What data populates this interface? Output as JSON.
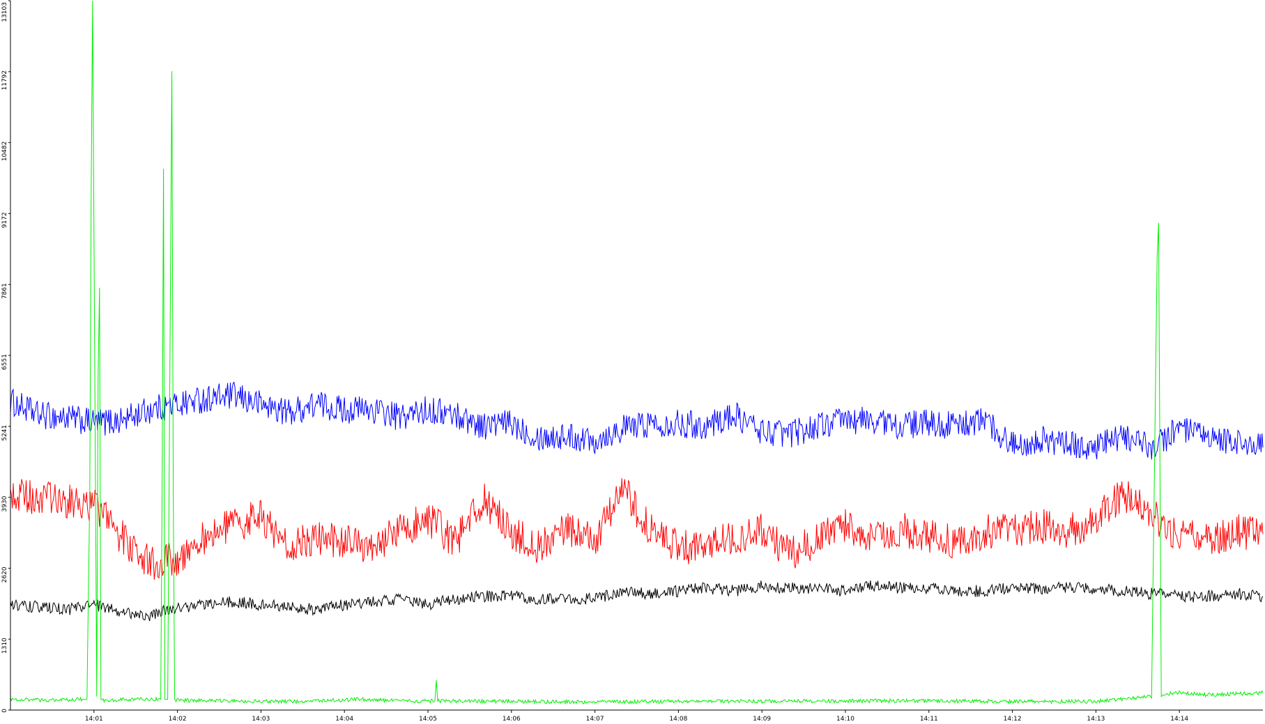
{
  "chart_data": {
    "type": "line",
    "title": "",
    "xlabel": "",
    "ylabel": "",
    "ylim": [
      0,
      13103
    ],
    "xlim": [
      "14:00:00",
      "14:15:00"
    ],
    "grid": false,
    "legend": "none",
    "y_ticks": [
      0,
      1310,
      2620,
      3930,
      5241,
      6551,
      7861,
      9172,
      10482,
      11792,
      13103
    ],
    "x_ticks": [
      "14:01",
      "14:02",
      "14:03",
      "14:04",
      "14:05",
      "14:06",
      "14:07",
      "14:08",
      "14:09",
      "14:10",
      "14:11",
      "14:12",
      "14:13",
      "14:14"
    ],
    "series": [
      {
        "color": "#0000ff",
        "x": [
          "14:00:00",
          "14:00:20",
          "14:00:40",
          "14:01:00",
          "14:01:20",
          "14:01:40",
          "14:02:00",
          "14:02:20",
          "14:02:40",
          "14:03:00",
          "14:03:20",
          "14:03:40",
          "14:04:00",
          "14:04:20",
          "14:04:40",
          "14:05:00",
          "14:05:20",
          "14:05:40",
          "14:06:00",
          "14:06:20",
          "14:06:40",
          "14:07:00",
          "14:07:20",
          "14:07:40",
          "14:08:00",
          "14:08:20",
          "14:08:40",
          "14:09:00",
          "14:09:20",
          "14:09:40",
          "14:10:00",
          "14:10:20",
          "14:10:40",
          "14:11:00",
          "14:11:20",
          "14:11:40",
          "14:12:00",
          "14:12:20",
          "14:12:40",
          "14:13:00",
          "14:13:20",
          "14:13:40",
          "14:14:00",
          "14:14:20",
          "14:14:40",
          "14:15:00"
        ],
        "values": [
          5700,
          5450,
          5400,
          5300,
          5350,
          5550,
          5650,
          5750,
          5800,
          5650,
          5500,
          5650,
          5550,
          5550,
          5400,
          5550,
          5450,
          5250,
          5300,
          5050,
          5050,
          5000,
          5200,
          5300,
          5300,
          5250,
          5450,
          5150,
          5100,
          5250,
          5350,
          5350,
          5250,
          5300,
          5250,
          5350,
          4900,
          5000,
          4900,
          4850,
          5050,
          4850,
          5200,
          5000,
          4950,
          4850
        ]
      },
      {
        "color": "#ff0000",
        "x": [
          "14:00:00",
          "14:00:20",
          "14:00:40",
          "14:01:00",
          "14:01:20",
          "14:01:40",
          "14:02:00",
          "14:02:20",
          "14:02:40",
          "14:03:00",
          "14:03:20",
          "14:03:40",
          "14:04:00",
          "14:04:20",
          "14:04:40",
          "14:05:00",
          "14:05:20",
          "14:05:40",
          "14:06:00",
          "14:06:20",
          "14:06:40",
          "14:07:00",
          "14:07:20",
          "14:07:40",
          "14:08:00",
          "14:08:20",
          "14:08:40",
          "14:09:00",
          "14:09:20",
          "14:09:40",
          "14:10:00",
          "14:10:20",
          "14:10:40",
          "14:11:00",
          "14:11:20",
          "14:11:40",
          "14:12:00",
          "14:12:20",
          "14:12:40",
          "14:13:00",
          "14:13:20",
          "14:13:40",
          "14:14:00",
          "14:14:20",
          "14:14:40",
          "14:15:00"
        ],
        "values": [
          4000,
          3900,
          3850,
          3800,
          3200,
          2700,
          2800,
          3200,
          3400,
          3600,
          3000,
          3200,
          3100,
          3000,
          3300,
          3550,
          3100,
          3900,
          3300,
          3000,
          3350,
          3100,
          4100,
          3300,
          3000,
          3050,
          3200,
          3300,
          2900,
          3150,
          3400,
          3100,
          3350,
          3200,
          3100,
          3300,
          3300,
          3400,
          3300,
          3500,
          4000,
          3600,
          3200,
          3150,
          3300,
          3250
        ]
      },
      {
        "color": "#000000",
        "x": [
          "14:00:00",
          "14:00:20",
          "14:00:40",
          "14:01:00",
          "14:01:20",
          "14:01:40",
          "14:02:00",
          "14:02:20",
          "14:02:40",
          "14:03:00",
          "14:03:20",
          "14:03:40",
          "14:04:00",
          "14:04:20",
          "14:04:40",
          "14:05:00",
          "14:05:20",
          "14:05:40",
          "14:06:00",
          "14:06:20",
          "14:06:40",
          "14:07:00",
          "14:07:20",
          "14:07:40",
          "14:08:00",
          "14:08:20",
          "14:08:40",
          "14:09:00",
          "14:09:20",
          "14:09:40",
          "14:10:00",
          "14:10:20",
          "14:10:40",
          "14:11:00",
          "14:11:20",
          "14:11:40",
          "14:12:00",
          "14:12:20",
          "14:12:40",
          "14:13:00",
          "14:13:20",
          "14:13:40",
          "14:14:00",
          "14:14:20",
          "14:14:40",
          "14:15:00"
        ],
        "values": [
          1950,
          1900,
          1850,
          1950,
          1800,
          1750,
          1900,
          1950,
          2000,
          1950,
          1900,
          1850,
          1950,
          2000,
          2050,
          1950,
          2050,
          2100,
          2100,
          2050,
          2050,
          2050,
          2200,
          2150,
          2200,
          2250,
          2200,
          2300,
          2250,
          2250,
          2200,
          2300,
          2250,
          2250,
          2200,
          2200,
          2250,
          2250,
          2250,
          2250,
          2200,
          2150,
          2100,
          2100,
          2150,
          2100
        ]
      },
      {
        "color": "#00ee00",
        "x": [
          "14:00:00",
          "14:00:30",
          "14:00:55",
          "14:00:57",
          "14:00:58",
          "14:00:59",
          "14:01:02",
          "14:01:03",
          "14:01:04",
          "14:01:05",
          "14:01:06",
          "14:01:30",
          "14:01:48",
          "14:01:49",
          "14:01:50",
          "14:01:51",
          "14:01:53",
          "14:01:56",
          "14:01:57",
          "14:01:58",
          "14:01:59",
          "14:02:30",
          "14:03:30",
          "14:04:10",
          "14:04:50",
          "14:05:05",
          "14:05:06",
          "14:05:07",
          "14:06:00",
          "14:07:00",
          "14:08:00",
          "14:09:00",
          "14:10:00",
          "14:11:00",
          "14:12:00",
          "14:13:00",
          "14:13:40",
          "14:13:44",
          "14:13:45",
          "14:13:47",
          "14:13:49",
          "14:14:00",
          "14:14:20",
          "14:14:40",
          "14:15:00"
        ],
        "values": [
          200,
          180,
          200,
          4000,
          9500,
          13103,
          250,
          6200,
          7800,
          200,
          180,
          200,
          200,
          4000,
          10000,
          200,
          200,
          11800,
          4000,
          200,
          180,
          170,
          160,
          200,
          160,
          170,
          550,
          170,
          160,
          150,
          160,
          160,
          170,
          170,
          160,
          160,
          250,
          8400,
          9000,
          250,
          300,
          320,
          280,
          300,
          320
        ]
      }
    ]
  }
}
